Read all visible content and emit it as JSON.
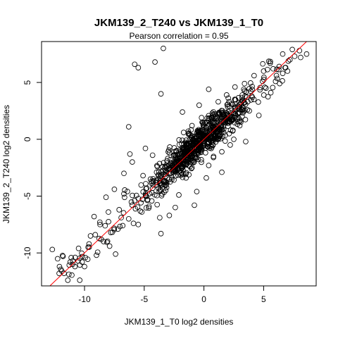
{
  "chart_data": {
    "type": "scatter",
    "title": "JKM139_2_T240 vs JKM139_1_T0",
    "subtitle": "Pearson correlation =  0.95",
    "xlabel": "JKM139_1_T0 log2 densities",
    "ylabel": "JKM139_2_T240 log2 densities",
    "xlim": [
      -13.6,
      9.4
    ],
    "ylim": [
      -12.9,
      8.6
    ],
    "x_ticks": [
      -10,
      -5,
      0,
      5
    ],
    "y_ticks": [
      -10,
      -5,
      0,
      5
    ],
    "marker": "open-circle",
    "marker_color": "#000000",
    "reference_line": {
      "type": "identity",
      "slope": 1,
      "intercept": 0,
      "color": "#ff0000"
    },
    "pearson_r": 0.95,
    "approx_point_count": 900,
    "series": [
      {
        "points": [
          [
            -4.1,
            6.8
          ],
          [
            -5.8,
            6.6
          ],
          [
            -5.5,
            6.3
          ],
          [
            -3.4,
            8.0
          ],
          [
            -3.6,
            4.0
          ],
          [
            -1.8,
            2.4
          ],
          [
            -0.4,
            3.0
          ],
          [
            0.4,
            4.4
          ],
          [
            2.0,
            3.1
          ],
          [
            -6.3,
            1.1
          ],
          [
            -6.2,
            -1.3
          ],
          [
            -4.9,
            -0.8
          ],
          [
            -2.3,
            -1.0
          ],
          [
            -1.0,
            -2.5
          ],
          [
            0.4,
            -2.3
          ],
          [
            1.5,
            -1.1
          ],
          [
            3.0,
            1.2
          ],
          [
            3.8,
            2.5
          ],
          [
            5.6,
            4.1
          ],
          [
            6.6,
            5.8
          ],
          [
            7.2,
            7.0
          ],
          [
            7.6,
            7.3
          ],
          [
            8.1,
            7.2
          ],
          [
            8.6,
            7.5
          ],
          [
            7.4,
            7.9
          ],
          [
            8.0,
            7.8
          ],
          [
            -3.6,
            -8.3
          ],
          [
            -5.5,
            -7.5
          ],
          [
            -6.7,
            -4.8
          ],
          [
            -7.1,
            -6.2
          ],
          [
            -8.2,
            -5.1
          ],
          [
            -8.7,
            -7.5
          ],
          [
            -9.2,
            -6.8
          ],
          [
            -10.5,
            -9.6
          ],
          [
            -11.0,
            -11.0
          ],
          [
            -11.8,
            -10.3
          ],
          [
            -12.7,
            -9.7
          ],
          [
            -11.4,
            -12.4
          ],
          [
            -10.4,
            -12.4
          ],
          [
            -10.0,
            -11.2
          ],
          [
            -11.2,
            -10.8
          ],
          [
            -9.7,
            -9.5
          ],
          [
            -9.5,
            -8.5
          ],
          [
            -8.4,
            -9.0
          ],
          [
            -7.8,
            -8.2
          ],
          [
            -7.2,
            -7.9
          ],
          [
            -6.8,
            -7.6
          ],
          [
            -6.3,
            -7.0
          ],
          [
            -12.1,
            -11.2
          ],
          [
            -11.9,
            -11.6
          ],
          [
            -10.8,
            -11.2
          ],
          [
            -10.2,
            -10.8
          ],
          [
            -9.0,
            -10.2
          ],
          [
            -9.1,
            -8.4
          ],
          [
            -8.6,
            -8.8
          ],
          [
            -7.9,
            -9.4
          ],
          [
            -7.4,
            -10.1
          ],
          [
            -5.9,
            -7.4
          ],
          [
            -5.2,
            -6.4
          ],
          [
            -4.6,
            -5.9
          ],
          [
            -3.7,
            -6.9
          ],
          [
            -2.9,
            -6.7
          ],
          [
            -2.1,
            -4.9
          ],
          [
            -1.5,
            -3.4
          ],
          [
            -0.6,
            -4.6
          ],
          [
            -4.4,
            -3.7
          ],
          [
            -3.9,
            -2.4
          ],
          [
            -3.1,
            -1.9
          ],
          [
            -2.5,
            -1.1
          ],
          [
            -1.7,
            0.6
          ],
          [
            -1.0,
            1.2
          ],
          [
            -0.2,
            1.9
          ],
          [
            0.7,
            2.3
          ],
          [
            1.2,
            3.3
          ],
          [
            1.9,
            3.9
          ],
          [
            2.6,
            4.6
          ],
          [
            3.4,
            4.9
          ],
          [
            4.2,
            5.6
          ],
          [
            5.0,
            6.0
          ],
          [
            5.8,
            6.2
          ],
          [
            6.3,
            6.4
          ],
          [
            4.6,
            2.1
          ],
          [
            3.5,
            -0.2
          ],
          [
            2.2,
            -0.5
          ],
          [
            1.5,
            -2.9
          ],
          [
            0.2,
            -3.4
          ],
          [
            -0.8,
            -5.8
          ],
          [
            -2.4,
            -6.0
          ],
          [
            -3.2,
            -4.5
          ],
          [
            -5.1,
            -3.2
          ],
          [
            -5.8,
            -5.4
          ],
          [
            -6.7,
            -3.0
          ],
          [
            -7.5,
            -4.4
          ],
          [
            -8.0,
            -6.4
          ],
          [
            -6.0,
            -2.0
          ],
          [
            -4.3,
            -1.4
          ],
          [
            -1.9,
            -2.4
          ],
          [
            0.8,
            -1.6
          ],
          [
            2.5,
            0.0
          ],
          [
            3.2,
            2.0
          ],
          [
            4.0,
            3.8
          ],
          [
            5.2,
            4.5
          ],
          [
            6.0,
            5.1
          ],
          [
            6.8,
            6.3
          ],
          [
            7.0,
            6.0
          ]
        ]
      }
    ]
  }
}
